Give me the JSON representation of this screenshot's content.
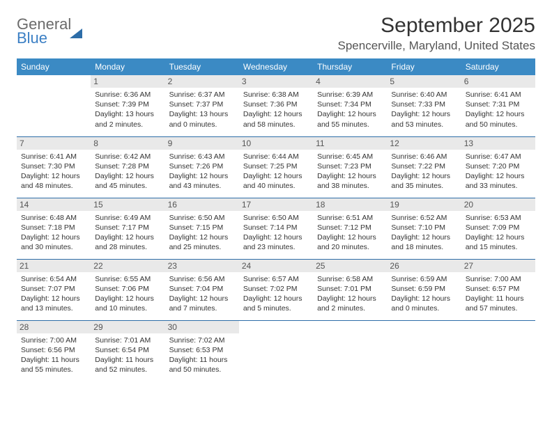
{
  "logo": {
    "line1": "General",
    "line2": "Blue"
  },
  "title": "September 2025",
  "location": "Spencerville, Maryland, United States",
  "colors": {
    "header_bg": "#3b8ac4",
    "header_text": "#ffffff",
    "daynum_bg": "#e9e9e9",
    "border": "#2d6da8",
    "text": "#333333",
    "logo_gray": "#6b6b6b",
    "logo_blue": "#3b7fc4"
  },
  "day_headers": [
    "Sunday",
    "Monday",
    "Tuesday",
    "Wednesday",
    "Thursday",
    "Friday",
    "Saturday"
  ],
  "labels": {
    "sunrise": "Sunrise:",
    "sunset": "Sunset:",
    "daylight": "Daylight:"
  },
  "weeks": [
    [
      {
        "empty": true
      },
      {
        "n": "1",
        "sunrise": "6:36 AM",
        "sunset": "7:39 PM",
        "daylight": "13 hours and 2 minutes."
      },
      {
        "n": "2",
        "sunrise": "6:37 AM",
        "sunset": "7:37 PM",
        "daylight": "13 hours and 0 minutes."
      },
      {
        "n": "3",
        "sunrise": "6:38 AM",
        "sunset": "7:36 PM",
        "daylight": "12 hours and 58 minutes."
      },
      {
        "n": "4",
        "sunrise": "6:39 AM",
        "sunset": "7:34 PM",
        "daylight": "12 hours and 55 minutes."
      },
      {
        "n": "5",
        "sunrise": "6:40 AM",
        "sunset": "7:33 PM",
        "daylight": "12 hours and 53 minutes."
      },
      {
        "n": "6",
        "sunrise": "6:41 AM",
        "sunset": "7:31 PM",
        "daylight": "12 hours and 50 minutes."
      }
    ],
    [
      {
        "n": "7",
        "sunrise": "6:41 AM",
        "sunset": "7:30 PM",
        "daylight": "12 hours and 48 minutes."
      },
      {
        "n": "8",
        "sunrise": "6:42 AM",
        "sunset": "7:28 PM",
        "daylight": "12 hours and 45 minutes."
      },
      {
        "n": "9",
        "sunrise": "6:43 AM",
        "sunset": "7:26 PM",
        "daylight": "12 hours and 43 minutes."
      },
      {
        "n": "10",
        "sunrise": "6:44 AM",
        "sunset": "7:25 PM",
        "daylight": "12 hours and 40 minutes."
      },
      {
        "n": "11",
        "sunrise": "6:45 AM",
        "sunset": "7:23 PM",
        "daylight": "12 hours and 38 minutes."
      },
      {
        "n": "12",
        "sunrise": "6:46 AM",
        "sunset": "7:22 PM",
        "daylight": "12 hours and 35 minutes."
      },
      {
        "n": "13",
        "sunrise": "6:47 AM",
        "sunset": "7:20 PM",
        "daylight": "12 hours and 33 minutes."
      }
    ],
    [
      {
        "n": "14",
        "sunrise": "6:48 AM",
        "sunset": "7:18 PM",
        "daylight": "12 hours and 30 minutes."
      },
      {
        "n": "15",
        "sunrise": "6:49 AM",
        "sunset": "7:17 PM",
        "daylight": "12 hours and 28 minutes."
      },
      {
        "n": "16",
        "sunrise": "6:50 AM",
        "sunset": "7:15 PM",
        "daylight": "12 hours and 25 minutes."
      },
      {
        "n": "17",
        "sunrise": "6:50 AM",
        "sunset": "7:14 PM",
        "daylight": "12 hours and 23 minutes."
      },
      {
        "n": "18",
        "sunrise": "6:51 AM",
        "sunset": "7:12 PM",
        "daylight": "12 hours and 20 minutes."
      },
      {
        "n": "19",
        "sunrise": "6:52 AM",
        "sunset": "7:10 PM",
        "daylight": "12 hours and 18 minutes."
      },
      {
        "n": "20",
        "sunrise": "6:53 AM",
        "sunset": "7:09 PM",
        "daylight": "12 hours and 15 minutes."
      }
    ],
    [
      {
        "n": "21",
        "sunrise": "6:54 AM",
        "sunset": "7:07 PM",
        "daylight": "12 hours and 13 minutes."
      },
      {
        "n": "22",
        "sunrise": "6:55 AM",
        "sunset": "7:06 PM",
        "daylight": "12 hours and 10 minutes."
      },
      {
        "n": "23",
        "sunrise": "6:56 AM",
        "sunset": "7:04 PM",
        "daylight": "12 hours and 7 minutes."
      },
      {
        "n": "24",
        "sunrise": "6:57 AM",
        "sunset": "7:02 PM",
        "daylight": "12 hours and 5 minutes."
      },
      {
        "n": "25",
        "sunrise": "6:58 AM",
        "sunset": "7:01 PM",
        "daylight": "12 hours and 2 minutes."
      },
      {
        "n": "26",
        "sunrise": "6:59 AM",
        "sunset": "6:59 PM",
        "daylight": "12 hours and 0 minutes."
      },
      {
        "n": "27",
        "sunrise": "7:00 AM",
        "sunset": "6:57 PM",
        "daylight": "11 hours and 57 minutes."
      }
    ],
    [
      {
        "n": "28",
        "sunrise": "7:00 AM",
        "sunset": "6:56 PM",
        "daylight": "11 hours and 55 minutes."
      },
      {
        "n": "29",
        "sunrise": "7:01 AM",
        "sunset": "6:54 PM",
        "daylight": "11 hours and 52 minutes."
      },
      {
        "n": "30",
        "sunrise": "7:02 AM",
        "sunset": "6:53 PM",
        "daylight": "11 hours and 50 minutes."
      },
      {
        "empty": true
      },
      {
        "empty": true
      },
      {
        "empty": true
      },
      {
        "empty": true
      }
    ]
  ]
}
